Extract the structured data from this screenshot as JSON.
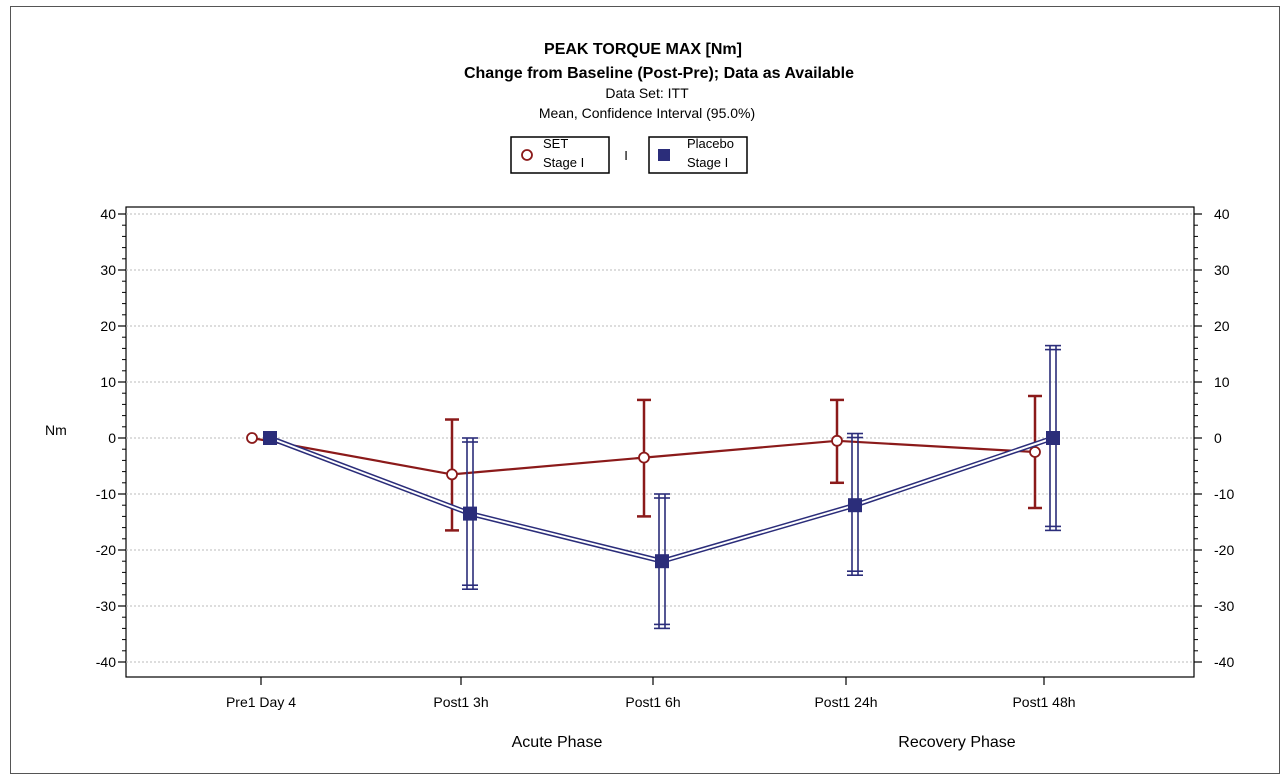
{
  "chart_data": {
    "type": "line",
    "title": "PEAK TORQUE MAX [Nm]",
    "subtitle": "Change from Baseline (Post-Pre); Data as Available",
    "subtitle2": "Data Set: ITT",
    "subtitle3": "Mean, Confidence Interval (95.0%)",
    "ylabel": "Nm",
    "ylim": [
      -42,
      42
    ],
    "yticks": [
      40,
      30,
      20,
      10,
      0,
      -10,
      -20,
      -30,
      -40
    ],
    "categories": [
      "Pre1 Day 4",
      "Post1 3h",
      "Post1 6h",
      "Post1 24h",
      "Post1 48h"
    ],
    "phases": [
      "Acute Phase",
      "Recovery Phase"
    ],
    "grid": true,
    "legend": {
      "placement": "top-center",
      "separator": "I",
      "items": [
        {
          "line1": "SET",
          "line2": "Stage I"
        },
        {
          "line1": "Placebo",
          "line2": "Stage I"
        }
      ]
    },
    "series": [
      {
        "marker": "open-circle",
        "color": "#8b1a1a",
        "values": [
          0,
          -6.5,
          -3.5,
          -0.5,
          -2.5
        ],
        "lower": [
          null,
          -16.5,
          -14,
          -8,
          -12.5
        ],
        "upper": [
          null,
          3.3,
          6.8,
          6.8,
          7.5
        ]
      },
      {
        "marker": "filled-square",
        "color": "#2b2d7a",
        "values": [
          0,
          -13.5,
          -22,
          -12,
          0
        ],
        "lower": [
          null,
          -27,
          -34,
          -24.5,
          -16.5
        ],
        "upper": [
          null,
          0,
          -10,
          0.8,
          16.5
        ]
      }
    ]
  }
}
